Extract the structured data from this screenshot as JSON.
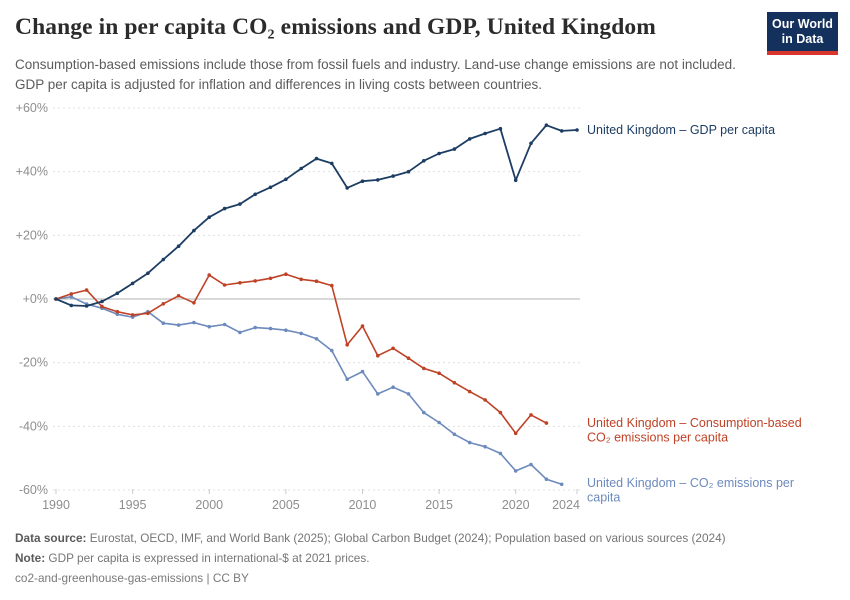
{
  "header": {
    "title": "Change in per capita CO₂ emissions and GDP, United Kingdom",
    "subtitle": "Consumption-based emissions include those from fossil fuels and industry. Land-use change emissions are not included. GDP per capita is adjusted for inflation and differences in living costs between countries.",
    "logo": {
      "line1": "Our World",
      "line2": "in Data",
      "bg_color": "#14305c",
      "accent_color": "#d8352c"
    }
  },
  "chart_data": {
    "type": "line",
    "title": "Change in per capita CO₂ emissions and GDP, United Kingdom",
    "xlim": [
      1990,
      2024
    ],
    "ylim": [
      -60,
      60
    ],
    "grid": "horizontal-dashed",
    "legend_position": "right-of-line-ends",
    "y_ticks": [
      {
        "value": 60,
        "label": "+60%"
      },
      {
        "value": 40,
        "label": "+40%"
      },
      {
        "value": 20,
        "label": "+20%"
      },
      {
        "value": 0,
        "label": "+0%"
      },
      {
        "value": -20,
        "label": "-20%"
      },
      {
        "value": -40,
        "label": "-40%"
      },
      {
        "value": -60,
        "label": "-60%"
      }
    ],
    "x_ticks": [
      {
        "year": 1990,
        "label": "1990"
      },
      {
        "year": 1995,
        "label": "1995"
      },
      {
        "year": 2000,
        "label": "2000"
      },
      {
        "year": 2005,
        "label": "2005"
      },
      {
        "year": 2010,
        "label": "2010"
      },
      {
        "year": 2015,
        "label": "2015"
      },
      {
        "year": 2020,
        "label": "2020"
      },
      {
        "year": 2024,
        "label": "2024"
      }
    ],
    "series": [
      {
        "key": "gdp-per-capita",
        "name": "United Kingdom – GDP per capita",
        "label_lines": [
          "United Kingdom – GDP per capita"
        ],
        "color": "#1d3d63",
        "start_year": 1990,
        "end_year": 2024,
        "values": [
          0,
          -2,
          -2.2,
          -0.8,
          1.8,
          4.9,
          8.1,
          12.4,
          16.6,
          21.5,
          25.7,
          28.4,
          29.8,
          32.9,
          35.1,
          37.6,
          41,
          44.1,
          42.6,
          34.9,
          37,
          37.4,
          38.6,
          40,
          43.4,
          45.7,
          47.1,
          50.3,
          52,
          53.5,
          37.3,
          48.9,
          54.6,
          52.8,
          53.1
        ]
      },
      {
        "key": "consumption-co2",
        "name": "United Kingdom – Consumption-based CO₂ emissions per capita",
        "label_lines": [
          "United Kingdom – Consumption-based",
          "CO₂ emissions per capita"
        ],
        "color": "#bf4226",
        "start_year": 1990,
        "end_year": 2022,
        "values": [
          0,
          1.6,
          2.8,
          -2.4,
          -4,
          -5,
          -4.5,
          -1.5,
          1,
          -1.2,
          7.5,
          4.4,
          5.1,
          5.7,
          6.5,
          7.8,
          6.2,
          5.6,
          4.2,
          -14.4,
          -8.5,
          -17.8,
          -15.5,
          -18.6,
          -21.8,
          -23.3,
          -26.3,
          -29.1,
          -31.7,
          -35.7,
          -42.2,
          -36.4,
          -39
        ]
      },
      {
        "key": "production-co2",
        "name": "United Kingdom – CO₂ emissions per capita",
        "label_lines": [
          "United Kingdom – CO₂ emissions per",
          "capita"
        ],
        "color": "#6d8abc",
        "start_year": 1990,
        "end_year": 2023,
        "values": [
          0,
          0.7,
          -1.6,
          -2.9,
          -4.8,
          -5.7,
          -4,
          -7.6,
          -8.2,
          -7.4,
          -8.7,
          -8,
          -10.5,
          -9,
          -9.3,
          -9.8,
          -10.8,
          -12.5,
          -16.2,
          -25.2,
          -22.8,
          -29.8,
          -27.7,
          -29.8,
          -35.7,
          -38.8,
          -42.5,
          -45.1,
          -46.4,
          -48.5,
          -54,
          -52,
          -56.6,
          -58.2
        ]
      }
    ]
  },
  "footer": {
    "source_label": "Data source:",
    "source_text": " Eurostat, OECD, IMF, and World Bank (2025); Global Carbon Budget (2024); Population based on various sources (2024)",
    "note_label": "Note:",
    "note_text": " GDP per capita is expressed in international-$ at 2021 prices.",
    "slug": "co2-and-greenhouse-gas-emissions | CC BY"
  }
}
